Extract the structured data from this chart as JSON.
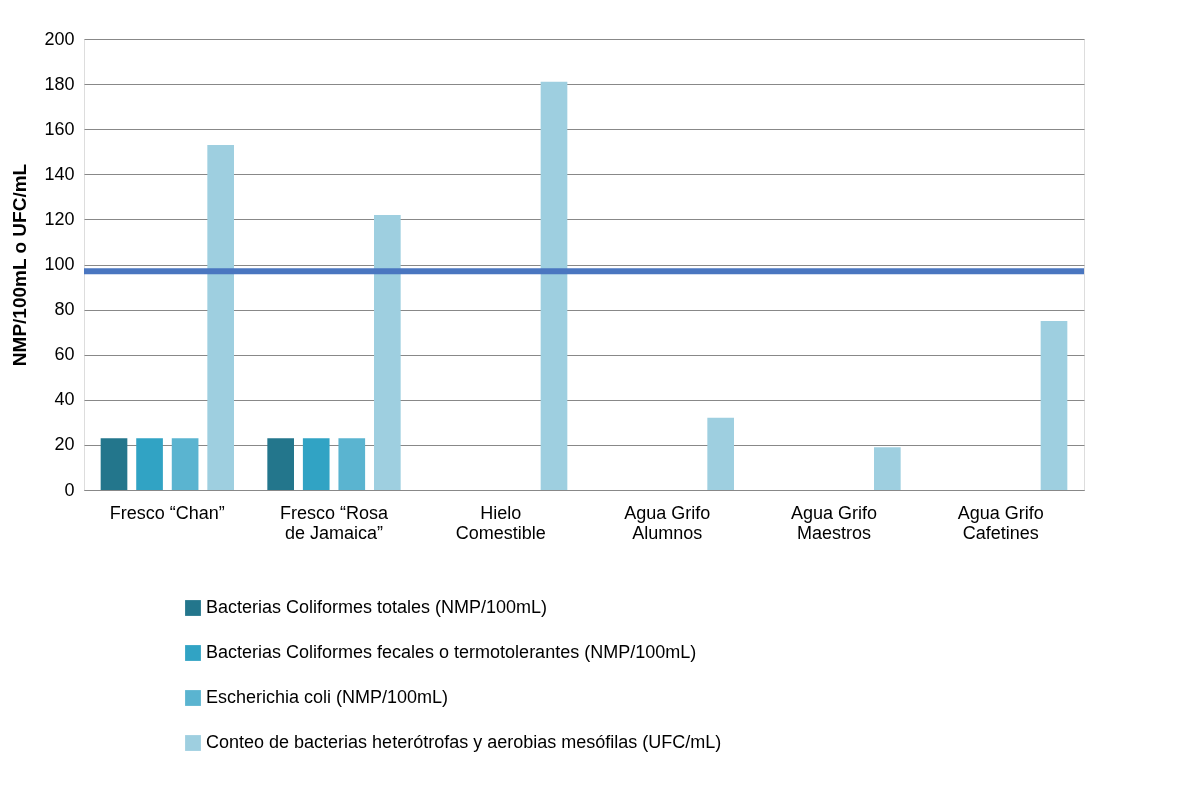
{
  "chart_data": {
    "type": "bar",
    "ylabel": "NMP/100mL o UFC/mL",
    "categories": [
      "Fresco “Chan”",
      "Fresco “Rosa de Jamaica”",
      "Hielo Comestible",
      "Agua Grifo Alumnos",
      "Agua Grifo Maestros",
      "Agua Grifo Cafetines"
    ],
    "series": [
      {
        "name": "Bacterias Coliformes totales (NMP/100mL)",
        "color": "#23768c",
        "values": [
          23,
          23,
          null,
          null,
          null,
          null
        ]
      },
      {
        "name": "Bacterias Coliformes fecales o termotolerantes (NMP/100mL)",
        "color": "#31a3c4",
        "values": [
          23,
          23,
          null,
          null,
          null,
          null
        ]
      },
      {
        "name": "Escherichia coli (NMP/100mL)",
        "color": "#5ab4d0",
        "values": [
          23,
          23,
          null,
          null,
          null,
          null
        ]
      },
      {
        "name": "Conteo de bacterias heterótrofas y aerobias mesófilas (UFC/mL)",
        "color": "#9ecfe0",
        "values": [
          153,
          122,
          181,
          32,
          19,
          75
        ]
      }
    ],
    "ylim": [
      0,
      200
    ],
    "yticks": [
      0,
      20,
      40,
      60,
      80,
      100,
      120,
      140,
      160,
      180,
      200
    ],
    "ref_lines": [
      {
        "axis": "y",
        "value": 97,
        "color": "#4a76c0"
      }
    ],
    "grid": "y",
    "legend": "bottom"
  }
}
